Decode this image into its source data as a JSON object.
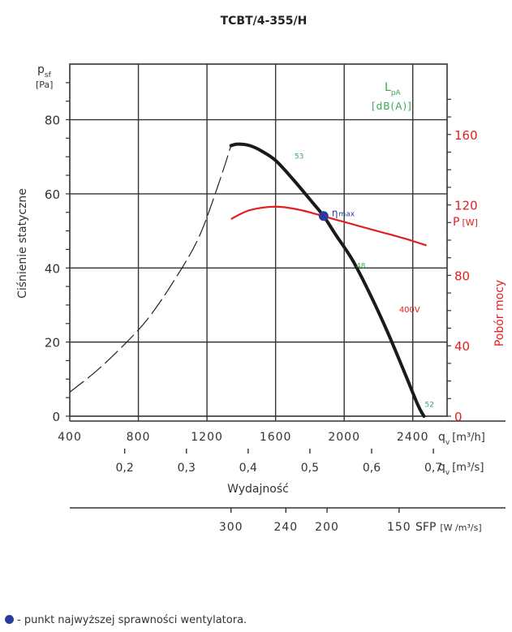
{
  "chart_data": {
    "type": "line",
    "title": "TCBT/4-355/H",
    "x": {
      "label": "q",
      "sub": "v",
      "unit": "[m³/h]",
      "range": [
        400,
        2600
      ],
      "ticks": [
        400,
        800,
        1200,
        1600,
        2000,
        2400
      ]
    },
    "x2": {
      "label": "q",
      "sub": "v",
      "unit": "[m³/s]",
      "ticks": [
        0.2,
        0.3,
        0.4,
        0.5,
        0.6,
        0.7
      ],
      "tick_labels": [
        "0,2",
        "0,3",
        "0,4",
        "0,5",
        "0,6",
        "0,7"
      ]
    },
    "x_caption": "Wydajność",
    "sfp": {
      "label": "SFP",
      "unit": "[W /m³/s]",
      "ticks": [
        300,
        240,
        200,
        150
      ],
      "at_m3h": [
        1340,
        1660,
        1900,
        2320
      ]
    },
    "y": {
      "label": "p",
      "sub": "sf",
      "unit": "[Pa]",
      "caption": "Ciśnienie statyczne",
      "range": [
        0,
        95
      ],
      "ticks": [
        0,
        20,
        40,
        60,
        80
      ]
    },
    "y2": {
      "label": "P",
      "unit": "[W]",
      "caption": "Pobór mocy",
      "range": [
        0,
        200
      ],
      "ticks": [
        0,
        40,
        80,
        120,
        160
      ]
    },
    "lpa_label": "L",
    "lpa_sub": "pA",
    "lpa_unit": "[dB(A)]",
    "series": [
      {
        "name": "pressure",
        "points": [
          [
            1340,
            73
          ],
          [
            1380,
            73.4
          ],
          [
            1450,
            73
          ],
          [
            1520,
            71.5
          ],
          [
            1600,
            69
          ],
          [
            1700,
            64
          ],
          [
            1800,
            58.5
          ],
          [
            1880,
            54
          ],
          [
            1950,
            49
          ],
          [
            2050,
            42
          ],
          [
            2150,
            33
          ],
          [
            2250,
            23
          ],
          [
            2350,
            12
          ],
          [
            2430,
            3
          ],
          [
            2465,
            0
          ]
        ]
      },
      {
        "name": "pressure-unstable",
        "style": "dashed",
        "points": [
          [
            400,
            6.5
          ],
          [
            550,
            12
          ],
          [
            700,
            18.5
          ],
          [
            850,
            26
          ],
          [
            1000,
            36
          ],
          [
            1150,
            48
          ],
          [
            1270,
            63
          ],
          [
            1340,
            73
          ]
        ]
      },
      {
        "name": "power",
        "points": [
          [
            1340,
            112
          ],
          [
            1450,
            117
          ],
          [
            1600,
            119
          ],
          [
            1750,
            117
          ],
          [
            1900,
            113
          ],
          [
            2050,
            109
          ],
          [
            2200,
            105
          ],
          [
            2350,
            101
          ],
          [
            2480,
            97
          ]
        ]
      }
    ],
    "annotations": [
      {
        "text": "53",
        "x": 1710,
        "y": 69.5
      },
      {
        "text": "48",
        "x": 2070,
        "y": 40
      },
      {
        "text": "52",
        "x": 2470,
        "y": 2.5
      },
      {
        "text": "400V",
        "x": 2320,
        "y": 28
      }
    ],
    "eta_max": {
      "x": 1880,
      "y": 54,
      "symbol": "η",
      "sub": "max"
    },
    "colors": {
      "pressure": "#1a1a1a",
      "power": "#e02020",
      "noise": "#3aa853",
      "eta": "#2b3c9c",
      "axis": "#333333"
    }
  },
  "footnote": "- punkt najwyższej sprawności wentylatora."
}
